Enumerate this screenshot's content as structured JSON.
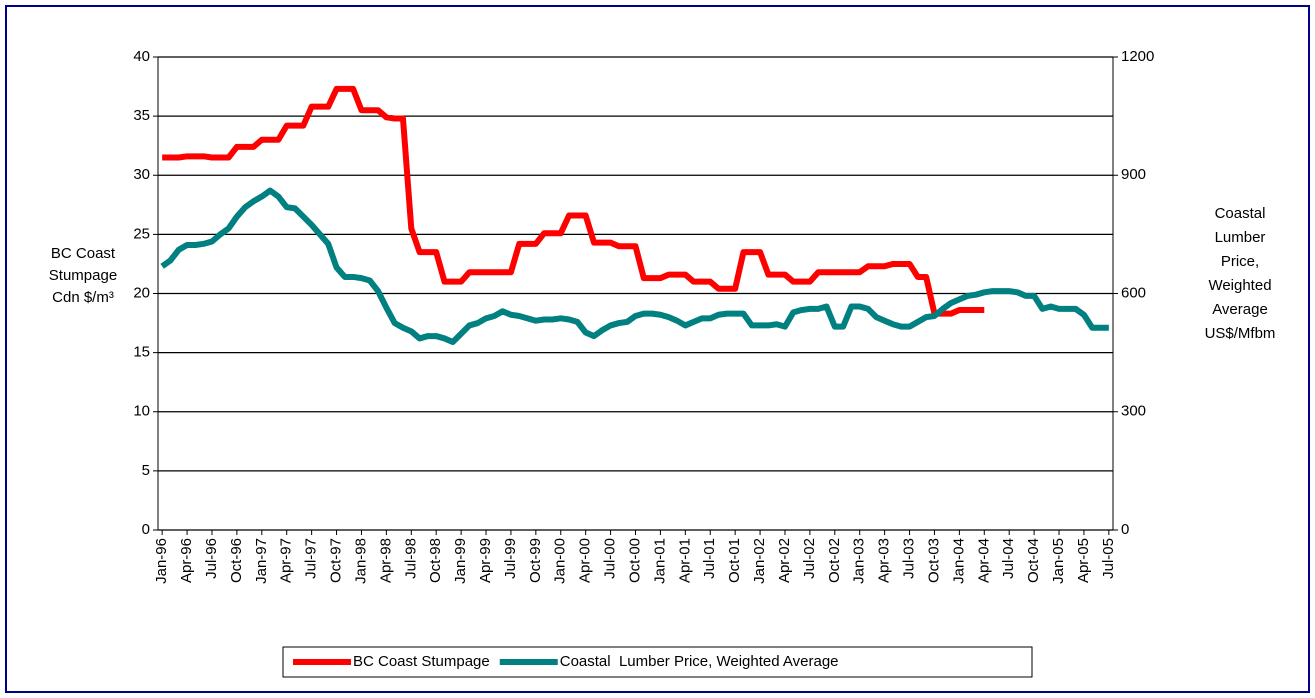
{
  "chart_data": {
    "type": "line",
    "ylabel": [
      "BC Coast",
      "Stumpage",
      "Cdn $/m³"
    ],
    "y2label": [
      "Coastal",
      "Lumber",
      "Price,",
      "Weighted",
      "Average",
      "US$/Mfbm"
    ],
    "categories": [
      "Jan-96",
      null,
      null,
      "Apr-96",
      null,
      null,
      "Jul-96",
      null,
      null,
      "Oct-96",
      null,
      null,
      "Jan-97",
      null,
      null,
      "Apr-97",
      null,
      null,
      "Jul-97",
      null,
      null,
      "Oct-97",
      null,
      null,
      "Jan-98",
      null,
      null,
      "Apr-98",
      null,
      null,
      "Jul-98",
      null,
      null,
      "Oct-98",
      null,
      null,
      "Jan-99",
      null,
      null,
      "Apr-99",
      null,
      null,
      "Jul-99",
      null,
      null,
      "Oct-99",
      null,
      null,
      "Jan-00",
      null,
      null,
      "Apr-00",
      null,
      null,
      "Jul-00",
      null,
      null,
      "Oct-00",
      null,
      null,
      "Jan-01",
      null,
      null,
      "Apr-01",
      null,
      null,
      "Jul-01",
      null,
      null,
      "Oct-01",
      null,
      null,
      "Jan-02",
      null,
      null,
      "Apr-02",
      null,
      null,
      "Jul-02",
      null,
      null,
      "Oct-02",
      null,
      null,
      "Jan-03",
      null,
      null,
      "Apr-03",
      null,
      null,
      "Jul-03",
      null,
      null,
      "Oct-03",
      null,
      null,
      "Jan-04",
      null,
      null,
      "Apr-04",
      null,
      null,
      "Jul-04",
      null,
      null,
      "Oct-04",
      null,
      null,
      "Jan-05",
      null,
      null,
      "Apr-05",
      null,
      null,
      "Jul-05"
    ],
    "series": [
      {
        "name": "BC Coast Stumpage",
        "color": "#ff0000",
        "axis": "y",
        "values": [
          31.5,
          31.5,
          31.5,
          31.6,
          31.6,
          31.6,
          31.5,
          31.5,
          31.5,
          32.4,
          32.4,
          32.4,
          33.0,
          33.0,
          33.0,
          34.2,
          34.2,
          34.2,
          35.8,
          35.8,
          35.8,
          37.3,
          37.3,
          37.3,
          35.5,
          35.5,
          35.5,
          34.9,
          34.8,
          34.8,
          25.5,
          23.5,
          23.5,
          23.5,
          21.0,
          21.0,
          21.0,
          21.8,
          21.8,
          21.8,
          21.8,
          21.8,
          21.8,
          24.2,
          24.2,
          24.2,
          25.1,
          25.1,
          25.1,
          26.6,
          26.6,
          26.6,
          24.3,
          24.3,
          24.3,
          24.0,
          24.0,
          24.0,
          21.3,
          21.3,
          21.3,
          21.6,
          21.6,
          21.6,
          21.0,
          21.0,
          21.0,
          20.4,
          20.4,
          20.4,
          23.5,
          23.5,
          23.5,
          21.6,
          21.6,
          21.6,
          21.0,
          21.0,
          21.0,
          21.8,
          21.8,
          21.8,
          21.8,
          21.8,
          21.8,
          22.3,
          22.3,
          22.3,
          22.5,
          22.5,
          22.5,
          21.4,
          21.4,
          18.3,
          18.3,
          18.3,
          18.6,
          18.6,
          18.6,
          18.6,
          null,
          null,
          null,
          null,
          null,
          null,
          null,
          null,
          null,
          null,
          null,
          null,
          null,
          null,
          null
        ]
      },
      {
        "name": "Coastal  Lumber Price, Weighted Average",
        "color": "#008080",
        "axis": "y2",
        "values": [
          669,
          684,
          711,
          723,
          723,
          726,
          732,
          750,
          765,
          795,
          819,
          834,
          846,
          861,
          846,
          819,
          816,
          795,
          774,
          750,
          726,
          666,
          642,
          642,
          639,
          633,
          606,
          564,
          525,
          513,
          504,
          486,
          492,
          492,
          486,
          477,
          498,
          519,
          525,
          537,
          543,
          555,
          546,
          543,
          537,
          531,
          534,
          534,
          537,
          534,
          528,
          501,
          492,
          507,
          519,
          525,
          528,
          543,
          549,
          549,
          546,
          540,
          531,
          519,
          528,
          537,
          537,
          546,
          549,
          549,
          549,
          519,
          519,
          519,
          522,
          516,
          552,
          558,
          561,
          561,
          567,
          516,
          516,
          567,
          567,
          561,
          540,
          531,
          522,
          516,
          516,
          528,
          540,
          543,
          561,
          576,
          585,
          594,
          597,
          603,
          606,
          606,
          606,
          603,
          594,
          594,
          561,
          567,
          561,
          561,
          561,
          546,
          513,
          513,
          513
        ]
      }
    ],
    "ylim": [
      0,
      40
    ],
    "yticks": [
      0,
      5,
      10,
      15,
      20,
      25,
      30,
      35,
      40
    ],
    "y2lim": [
      0,
      1200
    ],
    "y2ticks": [
      0,
      300,
      600,
      900,
      1200
    ],
    "grid": true,
    "legend": "bottom"
  }
}
